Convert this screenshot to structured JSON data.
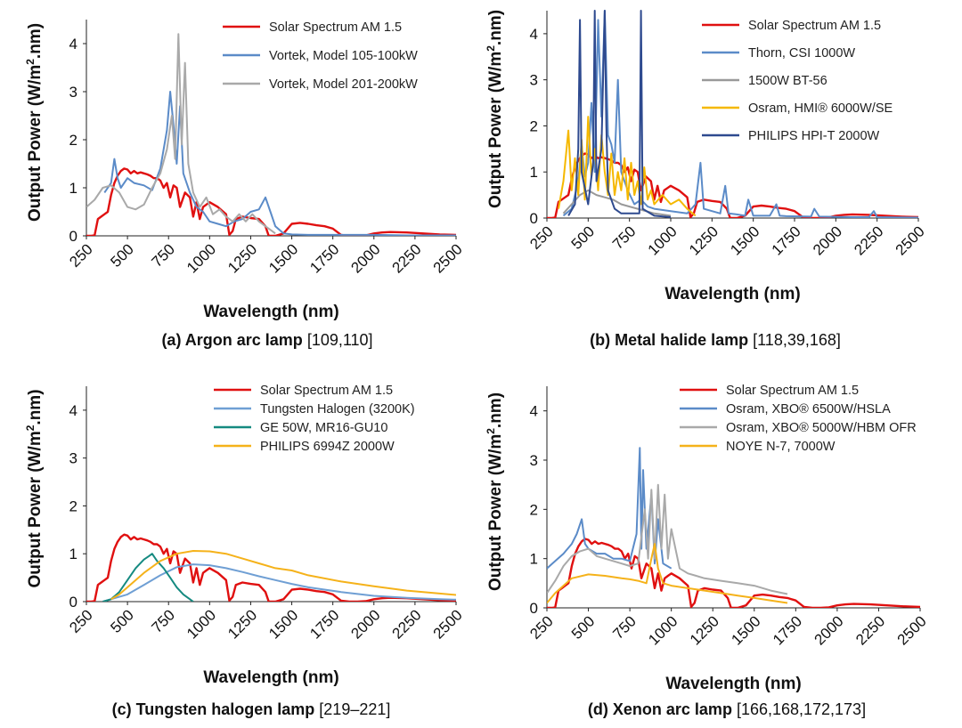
{
  "chart_data": [
    {
      "type": "line",
      "panel": "a",
      "caption_label": "(a) Argon arc lamp",
      "caption_refs": "[109,110]",
      "xlabel": "Wavelength (nm)",
      "ylabel_main": "Output Power (W/m",
      "ylabel_sup": "2",
      "ylabel_tail": ".nm)",
      "xlim": [
        250,
        2500
      ],
      "ylim": [
        0,
        4.5
      ],
      "xticks": [
        "250",
        "500",
        "750",
        "1000",
        "1250",
        "1500",
        "1750",
        "2000",
        "2250",
        "2500"
      ],
      "yticks": [
        "0",
        "1",
        "2",
        "3",
        "4"
      ],
      "series": [
        {
          "name": "Solar Spectrum AM 1.5",
          "color": "#e01010",
          "kind": "solar"
        },
        {
          "name": "Vortek, Model 105-100kW",
          "color": "#5b8bc8",
          "x": [
            250,
            360,
            400,
            420,
            440,
            460,
            500,
            540,
            600,
            650,
            700,
            740,
            760,
            780,
            800,
            820,
            840,
            880,
            920,
            960,
            1000,
            1050,
            1100,
            1150,
            1200,
            1250,
            1300,
            1340,
            1370,
            1400,
            1450,
            1500,
            1600,
            1800,
            2000,
            2200,
            2500
          ],
          "y": [
            null,
            0.9,
            1.1,
            1.6,
            1.2,
            1.0,
            1.2,
            1.1,
            1.05,
            0.95,
            1.4,
            2.2,
            3.0,
            2.3,
            1.5,
            2.7,
            1.3,
            0.9,
            0.6,
            0.5,
            0.3,
            0.25,
            0.2,
            0.3,
            0.35,
            0.5,
            0.55,
            0.8,
            0.5,
            0.2,
            0.05,
            0.03,
            0.02,
            0.02,
            0.02,
            0.01,
            0.01
          ]
        },
        {
          "name": "Vortek, Model 201-200kW",
          "color": "#a9a9a9",
          "x": [
            250,
            300,
            350,
            400,
            450,
            500,
            550,
            600,
            650,
            700,
            740,
            770,
            790,
            810,
            830,
            850,
            870,
            900,
            940,
            980,
            1020,
            1060,
            1100,
            1140,
            1180,
            1220,
            1260,
            1300,
            1340,
            1380,
            1400
          ],
          "y": [
            0.6,
            0.75,
            1.0,
            1.05,
            0.9,
            0.6,
            0.55,
            0.65,
            1.0,
            1.3,
            1.8,
            2.5,
            1.6,
            4.2,
            1.9,
            3.6,
            1.5,
            0.9,
            0.6,
            0.8,
            0.45,
            0.55,
            0.4,
            0.3,
            0.45,
            0.3,
            0.45,
            0.3,
            0.2,
            0.1,
            0.05
          ]
        }
      ],
      "legend": [
        "Solar Spectrum AM 1.5",
        "Vortek, Model 105-100kW",
        "Vortek, Model 201-200kW"
      ]
    },
    {
      "type": "line",
      "panel": "b",
      "caption_label": "(b) Metal halide lamp",
      "caption_refs": "[118,39,168]",
      "xlabel": "Wavelength (nm)",
      "ylabel_main": "Output Power (W/m",
      "ylabel_sup": "2",
      "ylabel_tail": ".nm)",
      "xlim": [
        250,
        2500
      ],
      "ylim": [
        0,
        4.5
      ],
      "xticks": [
        "250",
        "500",
        "750",
        "1000",
        "1250",
        "1500",
        "1750",
        "2000",
        "2250",
        "2500"
      ],
      "yticks": [
        "0",
        "1",
        "2",
        "3",
        "4"
      ],
      "series": [
        {
          "name": "Solar Spectrum AM 1.5",
          "color": "#e01010",
          "kind": "solar"
        },
        {
          "name": "Thorn, CSI 1000W",
          "color": "#5b8bc8",
          "x": [
            250,
            350,
            400,
            440,
            460,
            480,
            500,
            520,
            540,
            560,
            580,
            600,
            620,
            640,
            660,
            680,
            700,
            740,
            780,
            820,
            860,
            900,
            1000,
            1100,
            1150,
            1180,
            1200,
            1250,
            1300,
            1330,
            1350,
            1400,
            1450,
            1470,
            1500,
            1600,
            1640,
            1660,
            1700,
            1850,
            1870,
            1900,
            2100,
            2200,
            2230,
            2250,
            2500
          ],
          "y": [
            null,
            0.05,
            0.2,
            0.8,
            1.6,
            0.9,
            1.2,
            2.5,
            1.0,
            4.3,
            2.2,
            4.5,
            1.8,
            1.6,
            1.2,
            3.0,
            1.0,
            0.6,
            0.3,
            0.4,
            0.25,
            0.2,
            0.15,
            0.1,
            0.3,
            1.2,
            0.2,
            0.15,
            0.1,
            0.7,
            0.1,
            0.08,
            0.05,
            0.4,
            0.05,
            0.05,
            0.3,
            0.05,
            0.04,
            0.03,
            0.2,
            0.03,
            0.02,
            0.02,
            0.15,
            0.02,
            0.01
          ]
        },
        {
          "name": "1500W BT-56",
          "color": "#999999",
          "x": [
            250,
            350,
            400,
            450,
            500,
            550,
            600,
            650,
            700,
            750,
            800,
            900,
            1000
          ],
          "y": [
            null,
            0.1,
            0.3,
            0.5,
            0.6,
            0.5,
            0.45,
            0.4,
            0.3,
            0.25,
            0.2,
            0.1,
            0.05
          ]
        },
        {
          "name": "Osram, HMI® 6000W/SE",
          "color": "#f5b800",
          "x": [
            250,
            320,
            350,
            380,
            400,
            420,
            440,
            460,
            480,
            500,
            520,
            540,
            560,
            580,
            600,
            620,
            640,
            660,
            680,
            700,
            720,
            740,
            760,
            780,
            800,
            820,
            840,
            860,
            880,
            900,
            950,
            1000,
            1050,
            1100,
            1150
          ],
          "y": [
            null,
            0.2,
            0.8,
            1.9,
            0.6,
            1.3,
            0.5,
            1.7,
            0.4,
            2.2,
            0.9,
            1.5,
            0.6,
            1.8,
            1.0,
            0.5,
            1.4,
            0.5,
            1.0,
            0.6,
            1.3,
            0.4,
            1.2,
            0.5,
            0.8,
            0.3,
            1.1,
            0.4,
            0.6,
            0.3,
            0.5,
            0.3,
            0.4,
            0.2,
            0.05
          ]
        },
        {
          "name": "PHILIPS HPI-T 2000W",
          "color": "#2e4a8f",
          "x": [
            250,
            380,
            420,
            440,
            450,
            460,
            500,
            530,
            540,
            550,
            580,
            600,
            610,
            620,
            660,
            700,
            810,
            820,
            830,
            900,
            1000
          ],
          "y": [
            null,
            0.05,
            0.3,
            1.5,
            4.3,
            1.0,
            0.3,
            1.2,
            4.5,
            0.8,
            1.5,
            4.5,
            2.0,
            0.6,
            0.2,
            0.1,
            0.1,
            4.5,
            0.2,
            0.05,
            0.02
          ]
        }
      ],
      "legend": [
        "Solar Spectrum AM 1.5",
        "Thorn, CSI 1000W",
        "1500W BT-56",
        "Osram, HMI® 6000W/SE",
        "PHILIPS HPI-T 2000W"
      ]
    },
    {
      "type": "line",
      "panel": "c",
      "caption_label": "(c) Tungsten halogen lamp",
      "caption_refs": "[219–221]",
      "xlabel": "Wavelength (nm)",
      "ylabel_main": "Output Power (W/m",
      "ylabel_sup": "2",
      "ylabel_tail": ".nm)",
      "xlim": [
        250,
        2500
      ],
      "ylim": [
        0,
        4.5
      ],
      "xticks": [
        "250",
        "500",
        "750",
        "1000",
        "1250",
        "1500",
        "1750",
        "2000",
        "2250",
        "2500"
      ],
      "yticks": [
        "0",
        "1",
        "2",
        "3",
        "4"
      ],
      "series": [
        {
          "name": "Solar Spectrum AM 1.5",
          "color": "#e01010",
          "kind": "solar"
        },
        {
          "name": "Tungsten Halogen (3200K)",
          "color": "#6f9fd4",
          "x": [
            350,
            500,
            600,
            700,
            800,
            900,
            1000,
            1100,
            1200,
            1300,
            1400,
            1500,
            1600,
            1800,
            2000,
            2200,
            2400,
            2500
          ],
          "y": [
            0.0,
            0.15,
            0.35,
            0.55,
            0.72,
            0.78,
            0.76,
            0.7,
            0.62,
            0.53,
            0.45,
            0.37,
            0.3,
            0.2,
            0.12,
            0.08,
            0.05,
            0.04
          ]
        },
        {
          "name": "GE 50W, MR16-GU10",
          "color": "#158a80",
          "x": [
            350,
            400,
            450,
            500,
            550,
            600,
            630,
            650,
            680,
            720,
            760,
            800,
            840,
            880,
            900
          ],
          "y": [
            0.0,
            0.05,
            0.2,
            0.45,
            0.7,
            0.88,
            0.95,
            1.0,
            0.85,
            0.7,
            0.5,
            0.3,
            0.15,
            0.05,
            0.0
          ]
        },
        {
          "name": "PHILIPS 6994Z 2000W",
          "color": "#f5b21a",
          "x": [
            400,
            450,
            500,
            600,
            700,
            800,
            900,
            1000,
            1100,
            1200,
            1300,
            1400,
            1500,
            1600,
            1800,
            2000,
            2200,
            2400,
            2500
          ],
          "y": [
            0.05,
            0.15,
            0.3,
            0.6,
            0.85,
            1.0,
            1.06,
            1.05,
            1.0,
            0.9,
            0.8,
            0.7,
            0.65,
            0.55,
            0.42,
            0.32,
            0.23,
            0.17,
            0.14
          ]
        }
      ],
      "legend": [
        "Solar Spectrum AM 1.5",
        "Tungsten Halogen (3200K)",
        "GE 50W, MR16-GU10",
        "PHILIPS 6994Z 2000W"
      ]
    },
    {
      "type": "line",
      "panel": "d",
      "caption_label": "(d) Xenon arc lamp",
      "caption_refs": "[166,168,172,173]",
      "xlabel": "Wavelength (nm)",
      "ylabel_main": "Output Power (W/m",
      "ylabel_sup": "2",
      "ylabel_tail": ".nm)",
      "xlim": [
        250,
        2500
      ],
      "ylim": [
        0,
        4.5
      ],
      "xticks": [
        "250",
        "500",
        "750",
        "1000",
        "1250",
        "1500",
        "1750",
        "2000",
        "2250",
        "2500"
      ],
      "yticks": [
        "0",
        "1",
        "2",
        "3",
        "4"
      ],
      "series": [
        {
          "name": "Solar Spectrum AM 1.5",
          "color": "#e01010",
          "kind": "solar"
        },
        {
          "name": "Osram, XBO® 6500W/HSLA",
          "color": "#5b8bc8",
          "x": [
            250,
            300,
            350,
            400,
            430,
            460,
            480,
            500,
            550,
            600,
            650,
            700,
            750,
            790,
            810,
            820,
            830,
            850,
            880,
            900,
            920,
            950,
            1000
          ],
          "y": [
            0.8,
            0.95,
            1.1,
            1.3,
            1.5,
            1.8,
            1.3,
            1.2,
            1.1,
            1.1,
            1.0,
            1.0,
            0.95,
            1.5,
            3.25,
            1.2,
            2.8,
            1.2,
            2.3,
            0.9,
            1.8,
            0.9,
            0.8
          ]
        },
        {
          "name": "Osram, XBO® 5000W/HBM OFR",
          "color": "#a9a9a9",
          "x": [
            250,
            300,
            350,
            400,
            450,
            500,
            550,
            600,
            650,
            700,
            750,
            800,
            840,
            860,
            880,
            900,
            920,
            940,
            960,
            980,
            1000,
            1050,
            1100,
            1150,
            1200,
            1300,
            1400,
            1500,
            1600,
            1700
          ],
          "y": [
            0.3,
            0.55,
            0.85,
            1.05,
            1.15,
            1.2,
            1.05,
            1.0,
            0.95,
            0.9,
            0.85,
            0.9,
            2.0,
            1.0,
            2.4,
            1.0,
            2.5,
            1.2,
            2.3,
            1.0,
            1.6,
            0.8,
            0.7,
            0.65,
            0.6,
            0.55,
            0.5,
            0.45,
            0.35,
            0.28
          ]
        },
        {
          "name": "NOYE N-7, 7000W",
          "color": "#f5b21a",
          "x": [
            250,
            300,
            400,
            500,
            600,
            700,
            750,
            800,
            850,
            880,
            900,
            920,
            950,
            1000,
            1100,
            1200,
            1300,
            1400,
            1500,
            1600,
            1700
          ],
          "y": [
            0.1,
            0.3,
            0.6,
            0.68,
            0.65,
            0.6,
            0.58,
            0.55,
            0.5,
            1.0,
            1.3,
            0.8,
            0.5,
            0.45,
            0.4,
            0.35,
            0.3,
            0.25,
            0.2,
            0.15,
            0.1
          ]
        }
      ],
      "legend": [
        "Solar Spectrum AM 1.5",
        "Osram, XBO® 6500W/HSLA",
        "Osram, XBO® 5000W/HBM OFR",
        "NOYE N-7, 7000W"
      ]
    }
  ],
  "solar_reference": {
    "name": "Solar Spectrum AM 1.5",
    "x": [
      250,
      280,
      300,
      320,
      340,
      360,
      380,
      400,
      420,
      440,
      460,
      480,
      500,
      520,
      540,
      560,
      580,
      600,
      620,
      640,
      660,
      680,
      700,
      720,
      740,
      760,
      780,
      800,
      820,
      850,
      880,
      900,
      920,
      940,
      960,
      980,
      1000,
      1050,
      1100,
      1120,
      1140,
      1160,
      1200,
      1250,
      1300,
      1340,
      1360,
      1400,
      1450,
      1500,
      1550,
      1600,
      1650,
      1700,
      1750,
      1800,
      1850,
      1900,
      1950,
      2000,
      2050,
      2100,
      2200,
      2300,
      2400,
      2500
    ],
    "y": [
      0.0,
      0.0,
      0.01,
      0.35,
      0.4,
      0.45,
      0.5,
      0.85,
      1.1,
      1.25,
      1.35,
      1.4,
      1.38,
      1.3,
      1.35,
      1.3,
      1.32,
      1.3,
      1.28,
      1.25,
      1.2,
      1.2,
      1.15,
      1.0,
      1.1,
      0.8,
      1.05,
      1.0,
      0.6,
      0.9,
      0.8,
      0.4,
      0.7,
      0.35,
      0.6,
      0.65,
      0.7,
      0.6,
      0.45,
      0.02,
      0.1,
      0.35,
      0.4,
      0.37,
      0.35,
      0.2,
      0.0,
      0.0,
      0.05,
      0.25,
      0.27,
      0.25,
      0.22,
      0.2,
      0.15,
      0.02,
      0.0,
      0.0,
      0.01,
      0.05,
      0.07,
      0.08,
      0.07,
      0.05,
      0.03,
      0.02
    ]
  }
}
